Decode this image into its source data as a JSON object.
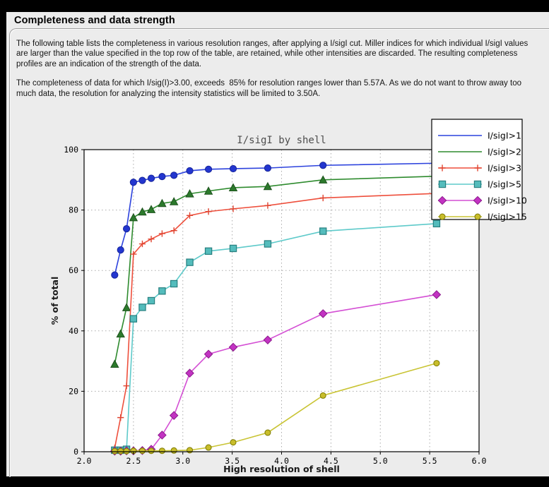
{
  "window": {
    "title": "Completeness and data strength"
  },
  "panel": {
    "paragraph1": "The following table lists the completeness in various resolution ranges, after applying a I/sigI cut. Miller indices for which individual I/sigI values are larger than the value specified in the top row of the table, are retained, while other intensities are discarded. The resulting completeness profiles are an indication of the strength of the data.",
    "paragraph2": "The completeness of data for which I/sig(I)>3.00, exceeds  85% for resolution ranges lower than 5.57A. As we do not want to throw away too much data, the resolution for analyzing the intensity statistics will be limited to 3.50A."
  },
  "chart_data": {
    "type": "line",
    "title": "I/sigI by shell",
    "xlabel": "High resolution of shell",
    "ylabel": "% of total",
    "xlim": [
      2.0,
      6.0
    ],
    "ylim": [
      0,
      100
    ],
    "xticks": [
      2.0,
      2.5,
      3.0,
      3.5,
      4.0,
      4.5,
      5.0,
      5.5,
      6.0
    ],
    "xtick_labels": [
      "2.0",
      "2.5",
      "3.0",
      "3.5",
      "4.0",
      "4.5",
      "5.0",
      "5.5",
      "6.0"
    ],
    "yticks": [
      0,
      20,
      40,
      60,
      80,
      100
    ],
    "ytick_labels": [
      "0",
      "20",
      "40",
      "60",
      "80",
      "100"
    ],
    "grid": true,
    "legend_position": "top-right",
    "title_color": "#4d4d4d",
    "grid_color": "#ababab",
    "plot_bg": "#ffffff",
    "x": [
      2.31,
      2.37,
      2.43,
      2.5,
      2.59,
      2.68,
      2.79,
      2.91,
      3.07,
      3.26,
      3.51,
      3.86,
      4.42,
      5.57
    ],
    "series": [
      {
        "name": "I/sigI>1",
        "color": "#2c42dd",
        "marker": "circle",
        "marker_fill": "#2336cf",
        "marker_edge": "#16249b",
        "marker_size": 4.6,
        "legend_marker": false,
        "values": [
          58.5,
          66.8,
          73.8,
          89.2,
          89.8,
          90.5,
          91.1,
          91.5,
          93.0,
          93.5,
          93.7,
          93.9,
          94.8,
          95.5
        ]
      },
      {
        "name": "I/sigI>2",
        "color": "#2e8b2e",
        "marker": "triangle",
        "marker_fill": "#2c7a2c",
        "marker_edge": "#1c511c",
        "marker_size": 5.4,
        "legend_marker": false,
        "values": [
          29.0,
          39.0,
          47.7,
          77.5,
          79.4,
          80.2,
          82.2,
          82.8,
          85.4,
          86.3,
          87.4,
          87.8,
          90.0,
          91.2
        ]
      },
      {
        "name": "I/sigI>3",
        "color": "#ee4f3c",
        "marker": "plus",
        "marker_fill": "#ee4f3c",
        "marker_edge": "#e04430",
        "marker_size": 4.6,
        "legend_marker": true,
        "values": [
          1.2,
          11.3,
          21.8,
          65.4,
          68.8,
          70.4,
          72.2,
          73.2,
          78.2,
          79.5,
          80.4,
          81.5,
          84.0,
          85.5
        ]
      },
      {
        "name": "I/sigI>5",
        "color": "#5ecaca",
        "marker": "square",
        "marker_fill": "#54bcbc",
        "marker_edge": "#277f7f",
        "marker_size": 4.6,
        "legend_marker": true,
        "values": [
          0.5,
          0.5,
          0.8,
          44.0,
          47.8,
          50.0,
          53.2,
          55.6,
          62.7,
          66.4,
          67.3,
          68.8,
          73.0,
          75.5
        ]
      },
      {
        "name": "I/sigI>10",
        "color": "#d44fd4",
        "marker": "diamond",
        "marker_fill": "#c233c2",
        "marker_edge": "#8c1a8c",
        "marker_size": 5.6,
        "legend_marker": true,
        "values": [
          0.2,
          0.2,
          0.3,
          0.3,
          0.4,
          0.8,
          5.5,
          12.0,
          26.0,
          32.3,
          34.6,
          37.0,
          45.7,
          52.0
        ]
      },
      {
        "name": "I/sigI>15",
        "color": "#c9c434",
        "marker": "circle",
        "marker_fill": "#c8bd2b",
        "marker_edge": "#7d7a00",
        "marker_size": 4.0,
        "legend_marker": true,
        "values": [
          0.2,
          0.2,
          0.2,
          0.3,
          0.3,
          0.3,
          0.3,
          0.4,
          0.5,
          1.4,
          3.1,
          6.3,
          18.6,
          29.3
        ]
      }
    ]
  }
}
